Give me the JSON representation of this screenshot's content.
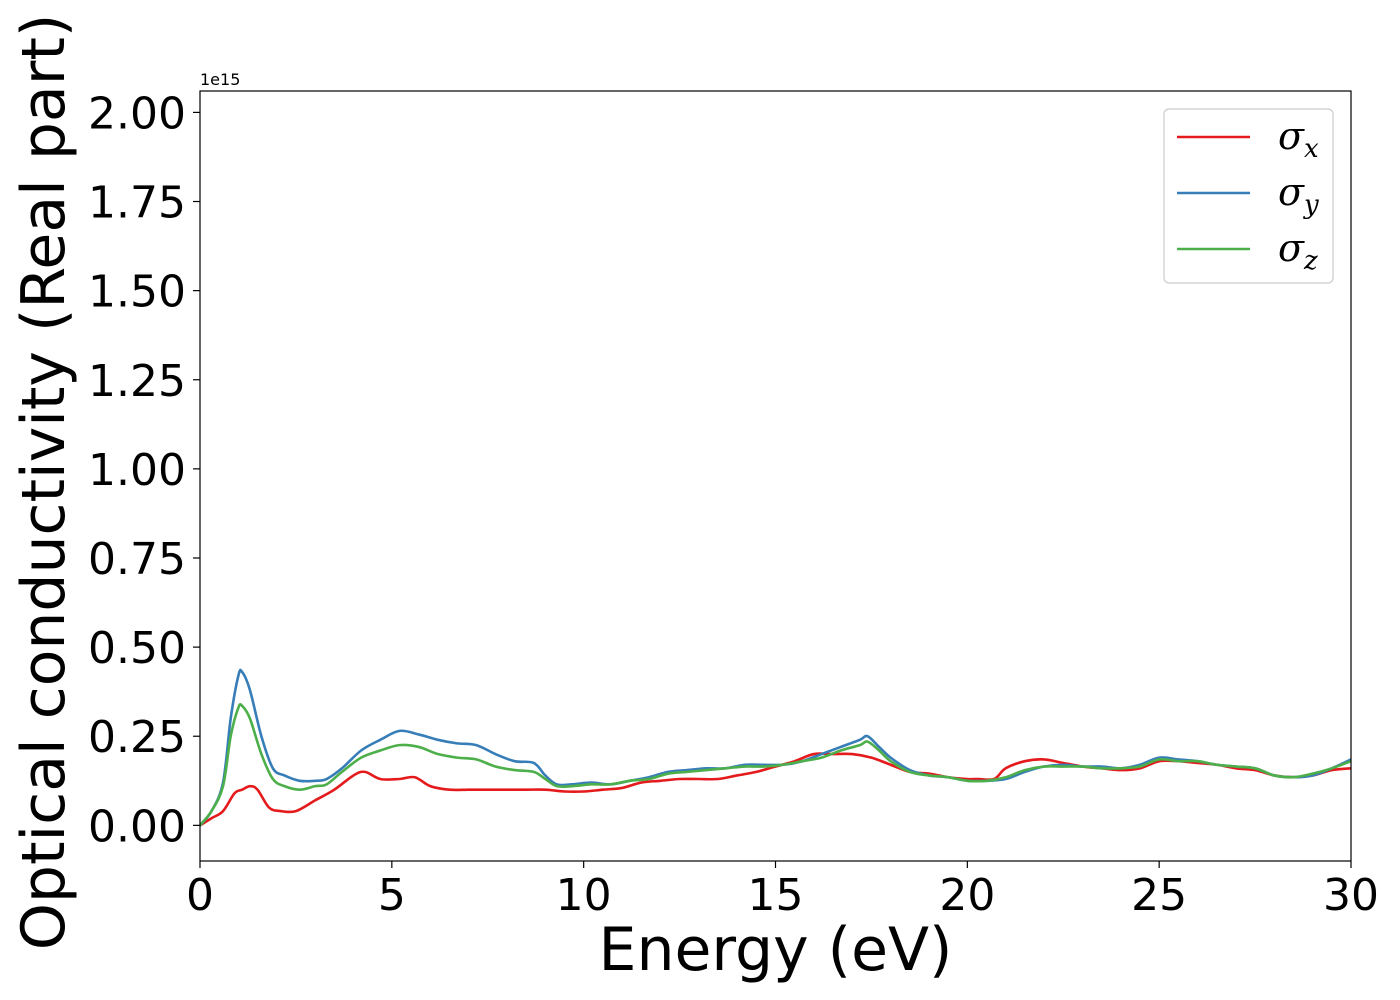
{
  "chart_data": {
    "type": "line",
    "title": "",
    "xlabel": "Energy (eV)",
    "ylabel": "Optical conductivity (Real part)",
    "offset_label": "1e15",
    "xlim": [
      0,
      30
    ],
    "ylim": [
      -0.1,
      2.06
    ],
    "x_ticks": [
      0,
      5,
      10,
      15,
      20,
      25,
      30
    ],
    "x_tick_labels": [
      "0",
      "5",
      "10",
      "15",
      "20",
      "25",
      "30"
    ],
    "y_ticks": [
      0.0,
      0.25,
      0.5,
      0.75,
      1.0,
      1.25,
      1.5,
      1.75,
      2.0
    ],
    "y_tick_labels": [
      "0.00",
      "0.25",
      "0.50",
      "0.75",
      "1.00",
      "1.25",
      "1.50",
      "1.75",
      "2.00"
    ],
    "grid": false,
    "legend_position": "top-right",
    "series": [
      {
        "name": "σx",
        "symbol": "σ",
        "subscript": "x",
        "color": "#e41a1c",
        "points": [
          [
            0,
            0
          ],
          [
            0.3,
            0.02
          ],
          [
            0.6,
            0.04
          ],
          [
            0.9,
            0.09
          ],
          [
            1.1,
            0.1
          ],
          [
            1.3,
            0.11
          ],
          [
            1.5,
            0.1
          ],
          [
            1.8,
            0.05
          ],
          [
            2.1,
            0.04
          ],
          [
            2.5,
            0.04
          ],
          [
            3.0,
            0.07
          ],
          [
            3.5,
            0.1
          ],
          [
            4.0,
            0.14
          ],
          [
            4.3,
            0.15
          ],
          [
            4.7,
            0.13
          ],
          [
            5.2,
            0.13
          ],
          [
            5.6,
            0.135
          ],
          [
            6.0,
            0.11
          ],
          [
            6.5,
            0.1
          ],
          [
            7.0,
            0.1
          ],
          [
            7.5,
            0.1
          ],
          [
            8.0,
            0.1
          ],
          [
            8.5,
            0.1
          ],
          [
            9.0,
            0.1
          ],
          [
            9.5,
            0.095
          ],
          [
            10,
            0.095
          ],
          [
            10.5,
            0.1
          ],
          [
            11,
            0.105
          ],
          [
            11.5,
            0.12
          ],
          [
            12,
            0.125
          ],
          [
            12.5,
            0.13
          ],
          [
            13,
            0.13
          ],
          [
            13.5,
            0.13
          ],
          [
            14,
            0.14
          ],
          [
            14.5,
            0.15
          ],
          [
            15,
            0.165
          ],
          [
            15.5,
            0.18
          ],
          [
            16,
            0.2
          ],
          [
            16.5,
            0.2
          ],
          [
            17,
            0.2
          ],
          [
            17.5,
            0.19
          ],
          [
            18,
            0.17
          ],
          [
            18.5,
            0.15
          ],
          [
            19,
            0.145
          ],
          [
            19.5,
            0.135
          ],
          [
            20,
            0.13
          ],
          [
            20.3,
            0.13
          ],
          [
            20.7,
            0.13
          ],
          [
            21,
            0.16
          ],
          [
            21.5,
            0.18
          ],
          [
            22,
            0.185
          ],
          [
            22.5,
            0.175
          ],
          [
            23,
            0.165
          ],
          [
            23.5,
            0.16
          ],
          [
            24,
            0.155
          ],
          [
            24.5,
            0.16
          ],
          [
            25,
            0.18
          ],
          [
            25.5,
            0.18
          ],
          [
            26,
            0.175
          ],
          [
            26.5,
            0.17
          ],
          [
            27,
            0.16
          ],
          [
            27.5,
            0.155
          ],
          [
            28,
            0.14
          ],
          [
            28.5,
            0.135
          ],
          [
            29,
            0.14
          ],
          [
            29.5,
            0.155
          ],
          [
            30,
            0.16
          ]
        ]
      },
      {
        "name": "σy",
        "symbol": "σ",
        "subscript": "y",
        "color": "#377eb8",
        "points": [
          [
            0,
            0
          ],
          [
            0.3,
            0.04
          ],
          [
            0.6,
            0.12
          ],
          [
            0.8,
            0.3
          ],
          [
            1.0,
            0.42
          ],
          [
            1.1,
            0.43
          ],
          [
            1.3,
            0.38
          ],
          [
            1.6,
            0.25
          ],
          [
            1.9,
            0.16
          ],
          [
            2.2,
            0.14
          ],
          [
            2.6,
            0.125
          ],
          [
            3.0,
            0.125
          ],
          [
            3.3,
            0.13
          ],
          [
            3.7,
            0.16
          ],
          [
            4.2,
            0.21
          ],
          [
            4.7,
            0.24
          ],
          [
            5.2,
            0.265
          ],
          [
            5.7,
            0.255
          ],
          [
            6.2,
            0.24
          ],
          [
            6.7,
            0.23
          ],
          [
            7.2,
            0.225
          ],
          [
            7.7,
            0.2
          ],
          [
            8.2,
            0.18
          ],
          [
            8.7,
            0.175
          ],
          [
            9.0,
            0.14
          ],
          [
            9.3,
            0.115
          ],
          [
            9.7,
            0.115
          ],
          [
            10.2,
            0.12
          ],
          [
            10.7,
            0.115
          ],
          [
            11.2,
            0.125
          ],
          [
            11.7,
            0.135
          ],
          [
            12.2,
            0.15
          ],
          [
            12.7,
            0.155
          ],
          [
            13.2,
            0.16
          ],
          [
            13.7,
            0.16
          ],
          [
            14.2,
            0.17
          ],
          [
            14.7,
            0.17
          ],
          [
            15.2,
            0.17
          ],
          [
            15.7,
            0.18
          ],
          [
            16.2,
            0.2
          ],
          [
            16.7,
            0.22
          ],
          [
            17.2,
            0.24
          ],
          [
            17.4,
            0.25
          ],
          [
            17.7,
            0.22
          ],
          [
            18.0,
            0.19
          ],
          [
            18.5,
            0.155
          ],
          [
            19.0,
            0.14
          ],
          [
            19.5,
            0.135
          ],
          [
            20.0,
            0.125
          ],
          [
            20.5,
            0.125
          ],
          [
            21.0,
            0.13
          ],
          [
            21.5,
            0.15
          ],
          [
            22.0,
            0.165
          ],
          [
            22.5,
            0.17
          ],
          [
            23.0,
            0.165
          ],
          [
            23.5,
            0.165
          ],
          [
            24.0,
            0.16
          ],
          [
            24.5,
            0.17
          ],
          [
            25.0,
            0.19
          ],
          [
            25.5,
            0.185
          ],
          [
            26.0,
            0.18
          ],
          [
            26.5,
            0.17
          ],
          [
            27.0,
            0.165
          ],
          [
            27.5,
            0.16
          ],
          [
            28.0,
            0.14
          ],
          [
            28.5,
            0.135
          ],
          [
            29.0,
            0.14
          ],
          [
            29.5,
            0.16
          ],
          [
            30,
            0.185
          ]
        ]
      },
      {
        "name": "σz",
        "symbol": "σ",
        "subscript": "z",
        "color": "#4daf4a",
        "points": [
          [
            0,
            0
          ],
          [
            0.3,
            0.04
          ],
          [
            0.6,
            0.11
          ],
          [
            0.8,
            0.25
          ],
          [
            1.0,
            0.33
          ],
          [
            1.1,
            0.335
          ],
          [
            1.3,
            0.3
          ],
          [
            1.6,
            0.2
          ],
          [
            1.9,
            0.13
          ],
          [
            2.2,
            0.11
          ],
          [
            2.6,
            0.1
          ],
          [
            3.0,
            0.11
          ],
          [
            3.3,
            0.115
          ],
          [
            3.7,
            0.15
          ],
          [
            4.2,
            0.19
          ],
          [
            4.7,
            0.21
          ],
          [
            5.2,
            0.225
          ],
          [
            5.7,
            0.22
          ],
          [
            6.2,
            0.2
          ],
          [
            6.7,
            0.19
          ],
          [
            7.2,
            0.185
          ],
          [
            7.7,
            0.165
          ],
          [
            8.2,
            0.155
          ],
          [
            8.7,
            0.15
          ],
          [
            9.0,
            0.13
          ],
          [
            9.3,
            0.11
          ],
          [
            9.7,
            0.11
          ],
          [
            10.2,
            0.115
          ],
          [
            10.7,
            0.115
          ],
          [
            11.2,
            0.125
          ],
          [
            11.7,
            0.13
          ],
          [
            12.2,
            0.145
          ],
          [
            12.7,
            0.15
          ],
          [
            13.2,
            0.155
          ],
          [
            13.7,
            0.16
          ],
          [
            14.2,
            0.165
          ],
          [
            14.7,
            0.165
          ],
          [
            15.2,
            0.17
          ],
          [
            15.7,
            0.18
          ],
          [
            16.2,
            0.19
          ],
          [
            16.7,
            0.21
          ],
          [
            17.2,
            0.225
          ],
          [
            17.4,
            0.235
          ],
          [
            17.7,
            0.21
          ],
          [
            18.0,
            0.18
          ],
          [
            18.5,
            0.15
          ],
          [
            19.0,
            0.14
          ],
          [
            19.5,
            0.135
          ],
          [
            20.0,
            0.125
          ],
          [
            20.5,
            0.125
          ],
          [
            21.0,
            0.135
          ],
          [
            21.5,
            0.155
          ],
          [
            22.0,
            0.165
          ],
          [
            22.5,
            0.165
          ],
          [
            23.0,
            0.165
          ],
          [
            23.5,
            0.16
          ],
          [
            24.0,
            0.16
          ],
          [
            24.5,
            0.165
          ],
          [
            25.0,
            0.185
          ],
          [
            25.5,
            0.18
          ],
          [
            26.0,
            0.18
          ],
          [
            26.5,
            0.17
          ],
          [
            27.0,
            0.165
          ],
          [
            27.5,
            0.16
          ],
          [
            28.0,
            0.14
          ],
          [
            28.5,
            0.135
          ],
          [
            29.0,
            0.145
          ],
          [
            29.5,
            0.16
          ],
          [
            30,
            0.18
          ]
        ]
      }
    ]
  }
}
